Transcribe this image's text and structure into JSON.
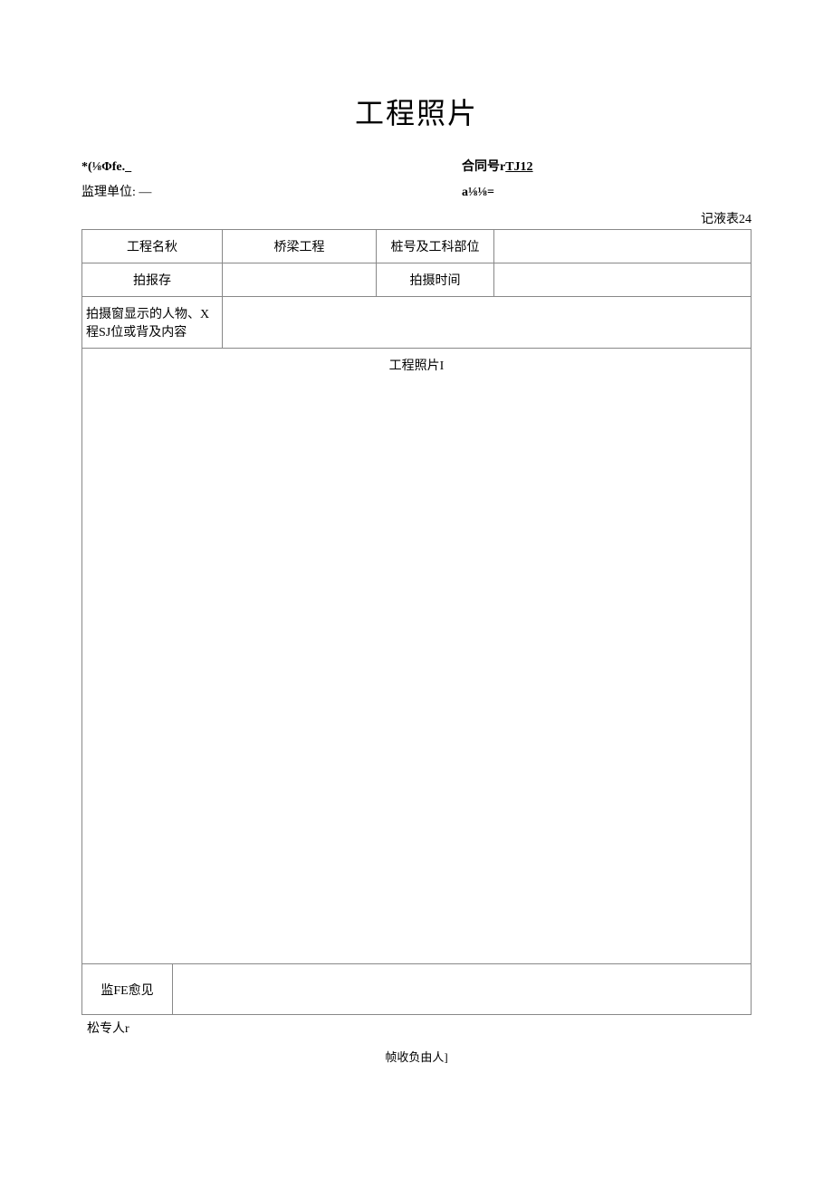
{
  "page": {
    "title": "工程照片",
    "background_color": "#ffffff",
    "text_color": "#000000",
    "border_color": "#888888"
  },
  "header": {
    "line1_left": "*(⅛Φfe._",
    "line1_right_label": "合同号r",
    "line1_right_value": "TJ12",
    "line2_left_label": "监理单位: ",
    "line2_left_value": "—",
    "line2_right": "a⅛⅛="
  },
  "table_label": "记液表24",
  "form": {
    "row1": {
      "label1": "工程名秋",
      "value1": "桥梁工程",
      "label2": "桩号及工科部位",
      "value2": ""
    },
    "row2": {
      "label1": "拍报存",
      "value1": "",
      "label2": "拍摄时间",
      "value2": ""
    },
    "row3": {
      "label": "拍摄窗显示的人物、X程SJ位或背及内容",
      "value": ""
    },
    "photo_label": "工程照片I",
    "opinion": {
      "label": "监FE愈见",
      "value": ""
    }
  },
  "footer": {
    "left": "松专人r",
    "center": "帧收负由人]"
  }
}
